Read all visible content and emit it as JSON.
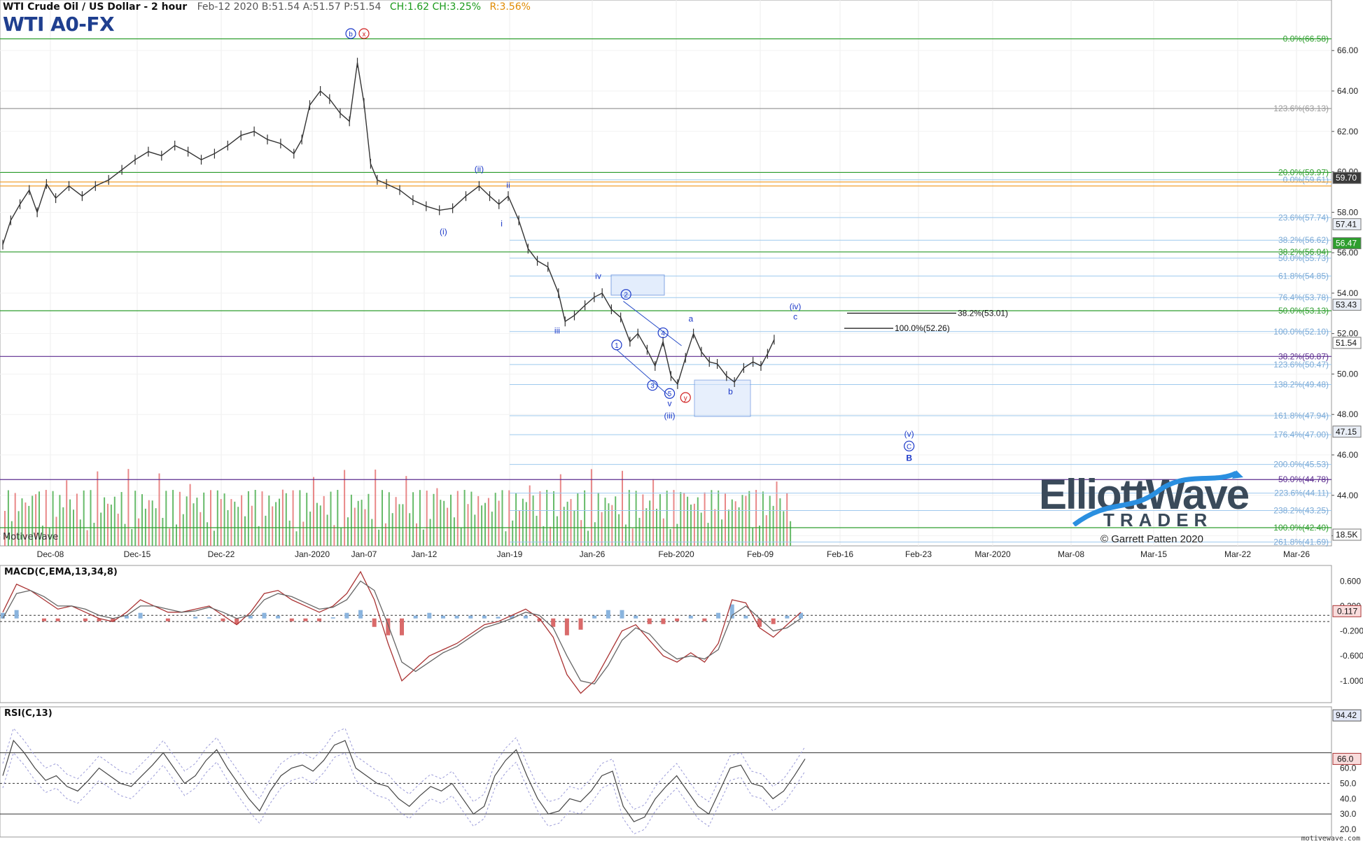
{
  "header": {
    "instrument": "WTI Crude Oil / US Dollar - 2 hour",
    "quote": "Feb-12 2020  B:51.54  A:51.57  P:51.54",
    "change": "CH:1.62  CH:3.25%",
    "range": "R:3.56%",
    "symbol": "WTI A0-FX"
  },
  "branding": {
    "platform": "MotiveWave",
    "logo_line1": "ElliottWave",
    "logo_line2": "TRADER",
    "logo_registered": "®",
    "copyright": "© Garrett Patten 2020",
    "site": "motivewave.com"
  },
  "panels": {
    "macd_title": "MACD(C,EMA,13,34,8)",
    "rsi_title": "RSI(C,13)"
  },
  "colors": {
    "price_bar": "#333333",
    "green_line": "#2e9e2e",
    "purple_line": "#5b2c8f",
    "orange_line": "#f0a030",
    "fib_light": "#9ec9ee",
    "wave_label": "#1a37c8",
    "alt_label": "#d02020",
    "volume_up": "#4caf50",
    "volume_down": "#e57373",
    "macd_line": "#a33",
    "macd_signal": "#666",
    "macd_hist_up": "#8ab4de",
    "macd_hist_down": "#d96a6a",
    "rsi_line": "#444",
    "rsi_band": "#9b9bd8"
  },
  "chart_data": {
    "type": "candlestick",
    "y_axis": {
      "ylim": [
        41.5,
        68.5
      ],
      "ticks": [
        "66.00",
        "64.00",
        "62.00",
        "60.00",
        "58.00",
        "56.00",
        "54.00",
        "52.00",
        "50.00",
        "48.00",
        "46.00",
        "44.00",
        "42.00"
      ],
      "tick_values": [
        66,
        64,
        62,
        60,
        58,
        56,
        54,
        52,
        50,
        48,
        46,
        44,
        42
      ]
    },
    "x_axis": {
      "labels": [
        "Dec-08",
        "Dec-15",
        "Dec-22",
        "Jan-2020",
        "Jan-07",
        "Jan-12",
        "Jan-19",
        "Jan-26",
        "Feb-2020",
        "Feb-09",
        "Feb-16",
        "Feb-23",
        "Mar-2020",
        "Mar-08",
        "Mar-15",
        "Mar-22",
        "Mar-26"
      ]
    },
    "price_series": [
      {
        "t": 0,
        "p": 56.4
      },
      {
        "t": 0.6,
        "p": 57.6
      },
      {
        "t": 1.3,
        "p": 58.4
      },
      {
        "t": 2,
        "p": 59.1
      },
      {
        "t": 2.6,
        "p": 58.0
      },
      {
        "t": 3.3,
        "p": 59.4
      },
      {
        "t": 4,
        "p": 58.7
      },
      {
        "t": 5,
        "p": 59.3
      },
      {
        "t": 6,
        "p": 58.8
      },
      {
        "t": 7,
        "p": 59.3
      },
      {
        "t": 8,
        "p": 59.6
      },
      {
        "t": 9,
        "p": 60.1
      },
      {
        "t": 10,
        "p": 60.6
      },
      {
        "t": 11,
        "p": 61.0
      },
      {
        "t": 12,
        "p": 60.8
      },
      {
        "t": 13,
        "p": 61.3
      },
      {
        "t": 14,
        "p": 61.0
      },
      {
        "t": 15,
        "p": 60.6
      },
      {
        "t": 16,
        "p": 60.9
      },
      {
        "t": 17,
        "p": 61.3
      },
      {
        "t": 18,
        "p": 61.8
      },
      {
        "t": 19,
        "p": 62.0
      },
      {
        "t": 20,
        "p": 61.6
      },
      {
        "t": 21,
        "p": 61.4
      },
      {
        "t": 22,
        "p": 60.9
      },
      {
        "t": 22.6,
        "p": 61.6
      },
      {
        "t": 23.2,
        "p": 63.3
      },
      {
        "t": 24,
        "p": 64.0
      },
      {
        "t": 24.7,
        "p": 63.6
      },
      {
        "t": 25.5,
        "p": 62.9
      },
      {
        "t": 26.2,
        "p": 62.5
      },
      {
        "t": 26.8,
        "p": 65.4
      },
      {
        "t": 27.3,
        "p": 63.4
      },
      {
        "t": 27.8,
        "p": 60.4
      },
      {
        "t": 28.3,
        "p": 59.6
      },
      {
        "t": 29,
        "p": 59.4
      },
      {
        "t": 30,
        "p": 59.1
      },
      {
        "t": 31,
        "p": 58.6
      },
      {
        "t": 32,
        "p": 58.3
      },
      {
        "t": 33,
        "p": 58.1
      },
      {
        "t": 34,
        "p": 58.2
      },
      {
        "t": 35,
        "p": 58.8
      },
      {
        "t": 36,
        "p": 59.3
      },
      {
        "t": 36.8,
        "p": 58.8
      },
      {
        "t": 37.5,
        "p": 58.4
      },
      {
        "t": 38.2,
        "p": 58.8
      },
      {
        "t": 39,
        "p": 57.6
      },
      {
        "t": 39.7,
        "p": 56.2
      },
      {
        "t": 40.4,
        "p": 55.6
      },
      {
        "t": 41.2,
        "p": 55.3
      },
      {
        "t": 42,
        "p": 54.0
      },
      {
        "t": 42.5,
        "p": 52.6
      },
      {
        "t": 43.2,
        "p": 52.9
      },
      {
        "t": 44,
        "p": 53.4
      },
      {
        "t": 44.7,
        "p": 53.8
      },
      {
        "t": 45.3,
        "p": 54.0
      },
      {
        "t": 46,
        "p": 53.2
      },
      {
        "t": 46.7,
        "p": 52.8
      },
      {
        "t": 47.4,
        "p": 51.6
      },
      {
        "t": 48,
        "p": 52.0
      },
      {
        "t": 48.7,
        "p": 51.2
      },
      {
        "t": 49.3,
        "p": 50.4
      },
      {
        "t": 49.9,
        "p": 51.6
      },
      {
        "t": 50.5,
        "p": 49.9
      },
      {
        "t": 51,
        "p": 49.5
      },
      {
        "t": 51.6,
        "p": 50.8
      },
      {
        "t": 52.2,
        "p": 52.0
      },
      {
        "t": 52.8,
        "p": 51.1
      },
      {
        "t": 53.4,
        "p": 50.6
      },
      {
        "t": 54,
        "p": 50.5
      },
      {
        "t": 54.7,
        "p": 49.9
      },
      {
        "t": 55.3,
        "p": 49.6
      },
      {
        "t": 56,
        "p": 50.3
      },
      {
        "t": 56.7,
        "p": 50.6
      },
      {
        "t": 57.3,
        "p": 50.4
      },
      {
        "t": 57.8,
        "p": 51.0
      },
      {
        "t": 58.3,
        "p": 51.7
      }
    ],
    "horizontal_lines": [
      {
        "label": "0.0%(66.58)",
        "value": 66.58,
        "color": "green",
        "full": true
      },
      {
        "label": "123.6%(63.13)",
        "value": 63.13,
        "color": "gray",
        "full": true
      },
      {
        "label": "20.0%(59.97)",
        "value": 59.97,
        "color": "green",
        "full": true
      },
      {
        "label": "0.0%(59.61)",
        "value": 59.61,
        "color": "fib",
        "full": false
      },
      {
        "label": "23.6%(57.74)",
        "value": 57.74,
        "color": "fib",
        "full": false
      },
      {
        "label": "38.2%(56.62)",
        "value": 56.62,
        "color": "fib",
        "full": false
      },
      {
        "label": "38.2%(56.04)",
        "value": 56.04,
        "color": "green",
        "full": true
      },
      {
        "label": "50.0%(55.73)",
        "value": 55.73,
        "color": "fib",
        "full": false
      },
      {
        "label": "61.8%(54.85)",
        "value": 54.85,
        "color": "fib",
        "full": false
      },
      {
        "label": "76.4%(53.78)",
        "value": 53.78,
        "color": "fib",
        "full": false
      },
      {
        "label": "50.0%(53.13)",
        "value": 53.13,
        "color": "green",
        "full": true
      },
      {
        "label": "100.0%(52.10)",
        "value": 52.1,
        "color": "fib",
        "full": false
      },
      {
        "label": "38.2%(50.87)",
        "value": 50.87,
        "color": "purple",
        "full": true
      },
      {
        "label": "123.6%(50.47)",
        "value": 50.47,
        "color": "fib",
        "full": false
      },
      {
        "label": "138.2%(49.48)",
        "value": 49.48,
        "color": "fib",
        "full": false
      },
      {
        "label": "161.8%(47.94)",
        "value": 47.94,
        "color": "fib",
        "full": false
      },
      {
        "label": "176.4%(47.00)",
        "value": 47.0,
        "color": "fib",
        "full": false
      },
      {
        "label": "200.0%(45.53)",
        "value": 45.53,
        "color": "fib",
        "full": false
      },
      {
        "label": "50.0%(44.78)",
        "value": 44.78,
        "color": "purple",
        "full": true
      },
      {
        "label": "223.6%(44.11)",
        "value": 44.11,
        "color": "fib",
        "full": false
      },
      {
        "label": "238.2%(43.25)",
        "value": 43.25,
        "color": "fib",
        "full": false
      },
      {
        "label": "100.0%(42.40)",
        "value": 42.4,
        "color": "green",
        "full": true
      },
      {
        "label": "261.8%(41.69)",
        "value": 41.69,
        "color": "fib",
        "full": false
      }
    ],
    "target_lines": [
      {
        "label": "38.2%(53.01)",
        "value": 53.01
      },
      {
        "label": "100.0%(52.26)",
        "value": 52.26
      }
    ],
    "price_tags": [
      {
        "label": "59.70",
        "value": 59.7,
        "style": "dark"
      },
      {
        "label": "57.41",
        "value": 57.41,
        "style": "light"
      },
      {
        "label": "56.47",
        "value": 56.47,
        "style": "green"
      },
      {
        "label": "53.43",
        "value": 53.43,
        "style": "light"
      },
      {
        "label": "51.54",
        "value": 51.54,
        "style": "plain"
      },
      {
        "label": "47.15",
        "value": 47.15,
        "style": "light"
      },
      {
        "label": "18.5K",
        "value": 42.0,
        "style": "plain"
      }
    ],
    "wave_labels": [
      {
        "text": "b",
        "t": 26.3,
        "p": 66.7,
        "circled": true,
        "color": "blue"
      },
      {
        "text": "x",
        "t": 27.3,
        "p": 66.7,
        "circled": true,
        "color": "red"
      },
      {
        "text": "(ii)",
        "t": 36.0,
        "p": 60.0,
        "circled": false,
        "color": "blue"
      },
      {
        "text": "(i)",
        "t": 33.3,
        "p": 56.9,
        "circled": false,
        "color": "blue"
      },
      {
        "text": "ii",
        "t": 38.2,
        "p": 59.2,
        "circled": false,
        "color": "blue"
      },
      {
        "text": "i",
        "t": 37.7,
        "p": 57.3,
        "circled": false,
        "color": "blue"
      },
      {
        "text": "iv",
        "t": 45.0,
        "p": 54.7,
        "circled": false,
        "color": "blue"
      },
      {
        "text": "iii",
        "t": 41.9,
        "p": 52.0,
        "circled": false,
        "color": "blue"
      },
      {
        "text": "2",
        "t": 47.1,
        "p": 53.8,
        "circled": true,
        "color": "blue"
      },
      {
        "text": "1",
        "t": 46.4,
        "p": 51.3,
        "circled": true,
        "color": "blue"
      },
      {
        "text": "4",
        "t": 49.9,
        "p": 51.9,
        "circled": true,
        "color": "blue"
      },
      {
        "text": "3",
        "t": 49.1,
        "p": 49.3,
        "circled": true,
        "color": "blue"
      },
      {
        "text": "5",
        "t": 50.4,
        "p": 48.9,
        "circled": true,
        "color": "blue"
      },
      {
        "text": "v",
        "t": 50.4,
        "p": 48.4,
        "circled": false,
        "color": "blue"
      },
      {
        "text": "(iii)",
        "t": 50.4,
        "p": 47.8,
        "circled": false,
        "color": "blue"
      },
      {
        "text": "y",
        "t": 51.6,
        "p": 48.7,
        "circled": true,
        "color": "red"
      },
      {
        "text": "a",
        "t": 52.0,
        "p": 52.6,
        "circled": false,
        "color": "blue"
      },
      {
        "text": "b",
        "t": 55.0,
        "p": 49.0,
        "circled": false,
        "color": "blue"
      },
      {
        "text": "(iv)",
        "t": 59.9,
        "p": 53.2,
        "circled": false,
        "color": "blue"
      },
      {
        "text": "c",
        "t": 59.9,
        "p": 52.7,
        "circled": false,
        "color": "blue"
      },
      {
        "text": "(v)",
        "t": 68.5,
        "p": 46.9,
        "circled": false,
        "color": "blue"
      },
      {
        "text": "C",
        "t": 68.5,
        "p": 46.3,
        "circled": true,
        "color": "blue"
      },
      {
        "text": "B",
        "t": 68.5,
        "p": 45.7,
        "circled": false,
        "color": "blue"
      }
    ],
    "macd": {
      "ticks": [
        "0.600",
        "0.200",
        "-0.200",
        "-0.600",
        "-1.000"
      ],
      "tick_values": [
        0.6,
        0.2,
        -0.2,
        -0.6,
        -1.0
      ],
      "ylim": [
        -1.35,
        0.85
      ],
      "current": "0.117",
      "line": [
        0.1,
        0.55,
        0.45,
        0.3,
        0.15,
        0.2,
        0.1,
        0.0,
        -0.05,
        0.1,
        0.3,
        0.2,
        0.1,
        0.1,
        0.15,
        0.2,
        0.05,
        -0.1,
        0.1,
        0.4,
        0.45,
        0.3,
        0.2,
        0.1,
        0.2,
        0.4,
        0.75,
        0.3,
        -0.4,
        -1.0,
        -0.8,
        -0.6,
        -0.5,
        -0.4,
        -0.25,
        -0.1,
        -0.05,
        0.05,
        0.15,
        0.0,
        -0.3,
        -0.9,
        -1.2,
        -1.0,
        -0.6,
        -0.2,
        -0.1,
        -0.35,
        -0.6,
        -0.7,
        -0.55,
        -0.7,
        -0.4,
        0.3,
        0.25,
        -0.15,
        -0.3,
        -0.1,
        0.1
      ],
      "signal": [
        0.0,
        0.4,
        0.45,
        0.35,
        0.2,
        0.2,
        0.15,
        0.05,
        0.0,
        0.05,
        0.2,
        0.2,
        0.15,
        0.1,
        0.12,
        0.18,
        0.1,
        0.0,
        0.05,
        0.3,
        0.4,
        0.35,
        0.25,
        0.15,
        0.18,
        0.3,
        0.6,
        0.45,
        -0.1,
        -0.7,
        -0.85,
        -0.7,
        -0.55,
        -0.45,
        -0.3,
        -0.15,
        -0.08,
        0.0,
        0.1,
        0.05,
        -0.15,
        -0.6,
        -1.0,
        -1.05,
        -0.75,
        -0.35,
        -0.15,
        -0.25,
        -0.5,
        -0.65,
        -0.6,
        -0.65,
        -0.5,
        0.05,
        0.2,
        0.0,
        -0.2,
        -0.15,
        0.0
      ]
    },
    "rsi": {
      "ticks": [
        "60.0",
        "50.0",
        "40.0",
        "30.0",
        "20.0"
      ],
      "tick_values": [
        60,
        50,
        40,
        30,
        20
      ],
      "ylim": [
        15,
        100
      ],
      "current_high": "94.42",
      "current": "66.0",
      "levels": [
        70,
        50,
        30
      ],
      "values": [
        55,
        78,
        70,
        60,
        52,
        55,
        48,
        45,
        52,
        60,
        55,
        50,
        48,
        55,
        62,
        70,
        60,
        50,
        55,
        65,
        72,
        60,
        50,
        40,
        32,
        45,
        55,
        60,
        62,
        58,
        65,
        75,
        78,
        60,
        55,
        50,
        48,
        40,
        35,
        42,
        48,
        45,
        50,
        40,
        30,
        35,
        55,
        65,
        72,
        55,
        40,
        30,
        32,
        40,
        38,
        45,
        55,
        58,
        35,
        25,
        28,
        40,
        48,
        55,
        45,
        35,
        30,
        45,
        60,
        62,
        50,
        48,
        40,
        45,
        55,
        66
      ]
    }
  }
}
